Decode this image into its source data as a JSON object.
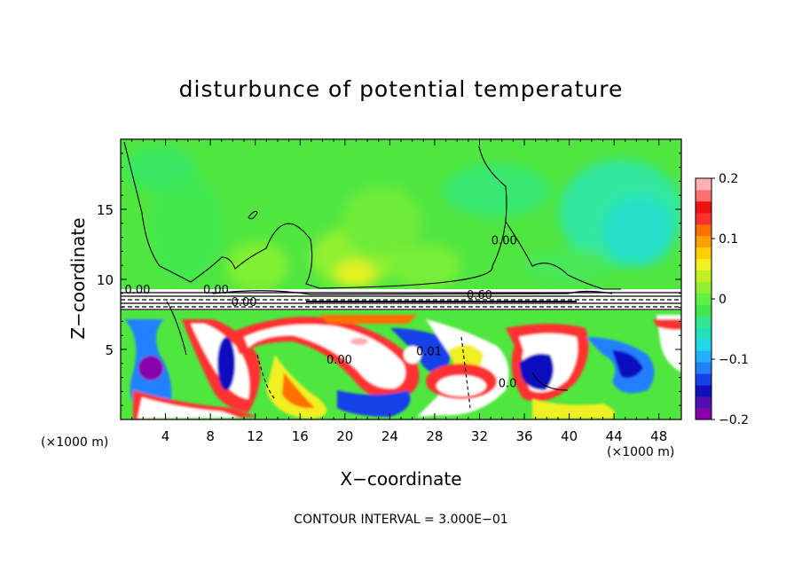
{
  "chart_data": {
    "type": "heatmap",
    "title": "disturbunce of potential temperature",
    "xlabel": "X−coordinate",
    "ylabel": "Z−coordinate",
    "x_unit": "(×1000 m)",
    "y_unit": "(×1000 m)",
    "xlim": [
      0,
      50
    ],
    "ylim": [
      0,
      20
    ],
    "x_ticks": [
      "4",
      "8",
      "12",
      "16",
      "20",
      "24",
      "28",
      "32",
      "36",
      "40",
      "44",
      "48"
    ],
    "x_tick_values": [
      4,
      8,
      12,
      16,
      20,
      24,
      28,
      32,
      36,
      40,
      44,
      48
    ],
    "y_ticks": [
      "5",
      "10",
      "15"
    ],
    "y_tick_values": [
      5,
      10,
      15
    ],
    "footer": "CONTOUR INTERVAL = 3.000E−01",
    "colorbar": {
      "range": [
        -0.2,
        0.2
      ],
      "tick_labels": [
        "0.2",
        "0.1",
        "0",
        "−0.1",
        "−0.2"
      ],
      "tick_values": [
        0.2,
        0.1,
        0,
        -0.1,
        -0.2
      ],
      "colors": [
        "#8800aa",
        "#5010b0",
        "#1010c0",
        "#1840e8",
        "#2080ff",
        "#20b0ff",
        "#20d8e8",
        "#20e0c0",
        "#30e890",
        "#40e850",
        "#60f040",
        "#90f030",
        "#c0f020",
        "#f0f020",
        "#ffd000",
        "#ffa000",
        "#ff7000",
        "#ff3030",
        "#f01010",
        "#ff7070",
        "#ffb0b0"
      ]
    },
    "contour_labels": [
      {
        "text": "0.00",
        "x": 1.5,
        "z": 9.0
      },
      {
        "text": "0.00",
        "x": 8.5,
        "z": 9.0
      },
      {
        "text": "0.00",
        "x": 11.0,
        "z": 8.1
      },
      {
        "text": "0.60",
        "x": 32.0,
        "z": 8.6
      },
      {
        "text": "0.00",
        "x": 34.2,
        "z": 12.5
      },
      {
        "text": "0.00",
        "x": 19.5,
        "z": 4.0
      },
      {
        "text": "0.01",
        "x": 27.5,
        "z": 4.6
      },
      {
        "text": "0.0",
        "x": 34.5,
        "z": 2.3
      }
    ],
    "regions": {
      "upper": {
        "z_range": [
          9,
          20
        ],
        "description_values": "near 0 to +0.05 (green/yellow-green), slight negative (cyan) near x=40-50"
      },
      "inversion_band": {
        "z_range": [
          7.8,
          9
        ],
        "value": "strong gradient, contoured"
      },
      "lower": {
        "z_range": [
          0,
          7.8
        ],
        "value": "turbulent eddies ranging -0.2 to 0.2+"
      }
    }
  }
}
